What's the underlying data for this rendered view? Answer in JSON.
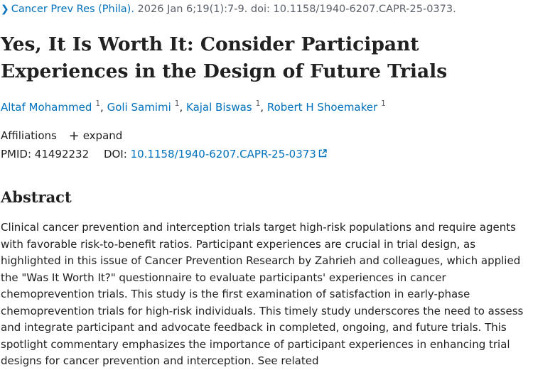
{
  "citation": {
    "journal": "Cancer Prev Res (Phila).",
    "details": " 2026 Jan 6;19(1):7-9. doi: 10.1158/1940-6207.CAPR-25-0373."
  },
  "title": "Yes, It Is Worth It: Consider Participant Experiences in the Design of Future Trials",
  "authors": [
    {
      "name": "Altaf Mohammed",
      "aff": "1"
    },
    {
      "name": "Goli Samimi",
      "aff": "1"
    },
    {
      "name": "Kajal Biswas",
      "aff": "1"
    },
    {
      "name": "Robert H Shoemaker",
      "aff": "1"
    }
  ],
  "affiliations": {
    "label": "Affiliations",
    "expand": "expand"
  },
  "ids": {
    "pmid_label": "PMID:",
    "pmid": "41492232",
    "doi_label": "DOI:",
    "doi": "10.1158/1940-6207.CAPR-25-0373"
  },
  "abstract": {
    "heading": "Abstract",
    "text": "Clinical cancer prevention and interception trials target high-risk populations and require agents with favorable risk-to-benefit ratios. Participant experiences are crucial in trial design, as highlighted in this issue of Cancer Prevention Research by Zahrieh and colleagues, which applied the \"Was It Worth It?\" questionnaire to evaluate participants' experiences in cancer chemoprevention trials. This study is the first examination of satisfaction in early-phase chemoprevention trials for high-risk individuals. This timely study underscores the need to assess and integrate participant and advocate feedback in completed, ongoing, and future trials. This spotlight commentary emphasizes the importance of participant experiences in enhancing trial designs for cancer prevention and interception. See related"
  },
  "colors": {
    "link": "#0071bc",
    "text": "#212121",
    "muted": "#5b616b"
  }
}
